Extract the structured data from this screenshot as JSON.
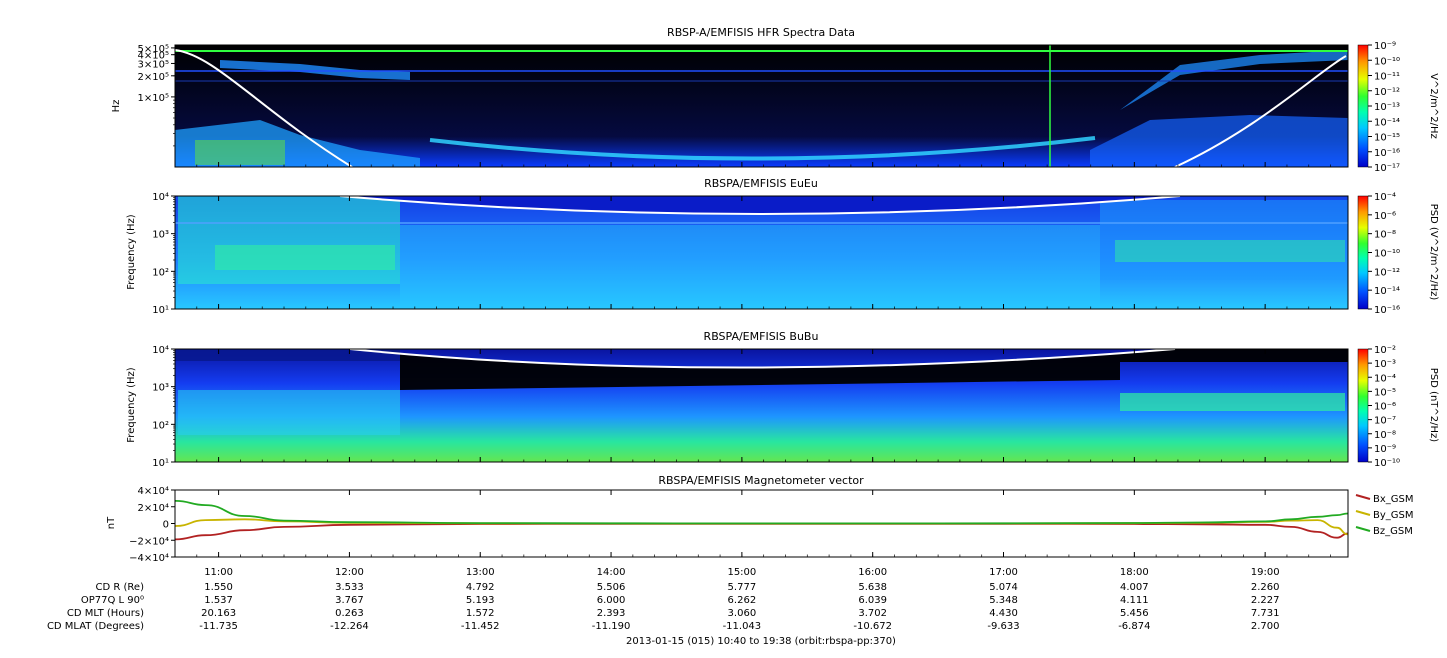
{
  "footer": "2013-01-15 (015) 10:40 to 19:38 (orbit:rbspa-pp:370)",
  "chart_data": [
    {
      "type": "heatmap",
      "title": "RBSP-A/EMFISIS  HFR Spectra Data",
      "ylabel": "Hz",
      "yscale": "log",
      "ytick_labels": [
        "5×10⁵",
        "4×10⁵",
        "3×10⁵",
        "2×10⁵",
        "1×10⁵"
      ],
      "ytick_values": [
        500000,
        400000,
        300000,
        200000,
        100000
      ],
      "ylim": [
        10000,
        550000
      ],
      "colorbar": {
        "label": "V^2/m^2/Hz",
        "min_exp": -17,
        "max_exp": -9,
        "tick_labels": [
          "10⁻⁹",
          "10⁻¹⁰",
          "10⁻¹¹",
          "10⁻¹²",
          "10⁻¹³",
          "10⁻¹⁴",
          "10⁻¹⁵",
          "10⁻¹⁶",
          "10⁻¹⁷"
        ]
      }
    },
    {
      "type": "heatmap",
      "title": "RBSPA/EMFISIS  EuEu",
      "ylabel": "Frequency (Hz)",
      "yscale": "log",
      "ytick_labels": [
        "10⁴",
        "10³",
        "10²",
        "10¹"
      ],
      "ytick_values": [
        10000,
        1000,
        100,
        10
      ],
      "ylim": [
        10,
        10000
      ],
      "colorbar": {
        "label": "PSD (V^2/m^2/Hz)",
        "min_exp": -16,
        "max_exp": -4,
        "tick_labels": [
          "10⁻⁴",
          "10⁻⁶",
          "10⁻⁸",
          "10⁻¹⁰",
          "10⁻¹²",
          "10⁻¹⁴",
          "10⁻¹⁶"
        ]
      }
    },
    {
      "type": "heatmap",
      "title": "RBSPA/EMFISIS  BuBu",
      "ylabel": "Frequency (Hz)",
      "yscale": "log",
      "ytick_labels": [
        "10⁴",
        "10³",
        "10²",
        "10¹"
      ],
      "ytick_values": [
        10000,
        1000,
        100,
        10
      ],
      "ylim": [
        10,
        10000
      ],
      "colorbar": {
        "label": "PSD (nT^2/Hz)",
        "min_exp": -10,
        "max_exp": -2,
        "tick_labels": [
          "10⁻²",
          "10⁻³",
          "10⁻⁴",
          "10⁻⁵",
          "10⁻⁶",
          "10⁻⁷",
          "10⁻⁸",
          "10⁻⁹",
          "10⁻¹⁰"
        ]
      }
    },
    {
      "type": "line",
      "title": "RBSPA/EMFISIS  Magnetometer vector",
      "ylabel": "nT",
      "ylim": [
        -40000,
        40000
      ],
      "ytick_labels": [
        "4×10⁴",
        "2×10⁴",
        "0",
        "−2×10⁴",
        "−4×10⁴"
      ],
      "ytick_values": [
        40000,
        20000,
        0,
        -20000,
        -40000
      ],
      "x": [
        10.67,
        10.9,
        11.2,
        11.5,
        12.0,
        13.0,
        14.0,
        15.0,
        16.0,
        17.0,
        18.0,
        18.5,
        19.0,
        19.2,
        19.4,
        19.55,
        19.63
      ],
      "series": [
        {
          "name": "Bx_GSM",
          "color": "#b22222",
          "values": [
            -19000,
            -14000,
            -8000,
            -4000,
            -1500,
            -600,
            -400,
            -300,
            -300,
            -400,
            -600,
            -900,
            -1500,
            -4000,
            -10000,
            -17000,
            -12000
          ]
        },
        {
          "name": "By_GSM",
          "color": "#c8b400",
          "values": [
            -3000,
            4000,
            5000,
            2500,
            800,
            200,
            100,
            0,
            0,
            100,
            300,
            800,
            2000,
            3500,
            4000,
            -5000,
            -13000
          ]
        },
        {
          "name": "Bz_GSM",
          "color": "#22aa22",
          "values": [
            27000,
            22000,
            9000,
            3500,
            1500,
            500,
            200,
            100,
            100,
            200,
            600,
            1200,
            2500,
            5000,
            8000,
            10000,
            12000
          ]
        }
      ]
    }
  ],
  "time_axis": {
    "start_hour": 10.6667,
    "end_hour": 19.6333,
    "labels": [
      "11:00",
      "12:00",
      "13:00",
      "14:00",
      "15:00",
      "16:00",
      "17:00",
      "18:00",
      "19:00"
    ],
    "hours": [
      11,
      12,
      13,
      14,
      15,
      16,
      17,
      18,
      19
    ]
  },
  "ephemeris": {
    "rows": [
      {
        "label": "CD R (Re)",
        "values": [
          "1.550",
          "3.533",
          "4.792",
          "5.506",
          "5.777",
          "5.638",
          "5.074",
          "4.007",
          "2.260"
        ]
      },
      {
        "label": "OP77Q L 90⁰",
        "values": [
          "1.537",
          "3.767",
          "5.193",
          "6.000",
          "6.262",
          "6.039",
          "5.348",
          "4.111",
          "2.227"
        ]
      },
      {
        "label": "CD MLT (Hours)",
        "values": [
          "20.163",
          "0.263",
          "1.572",
          "2.393",
          "3.060",
          "3.702",
          "4.430",
          "5.456",
          "7.731"
        ]
      },
      {
        "label": "CD MLAT (Degrees)",
        "values": [
          "-11.735",
          "-12.264",
          "-11.452",
          "-11.190",
          "-11.043",
          "-10.672",
          "-9.633",
          "-6.874",
          "2.700"
        ]
      }
    ]
  }
}
